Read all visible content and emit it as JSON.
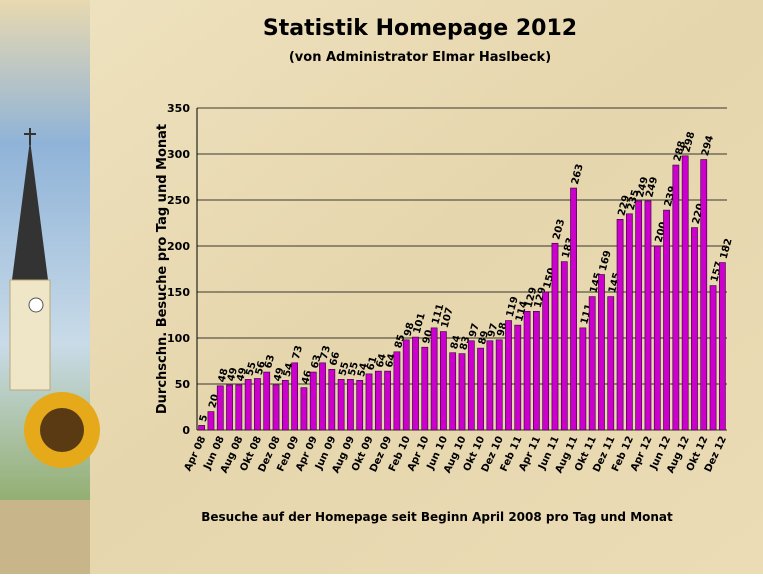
{
  "chart_data": {
    "type": "bar",
    "title": "Statistik Homepage 2012",
    "subtitle": "(von Administrator Elmar Haslbeck)",
    "y_label": "Durchschn. Besuche pro Tag und Monat",
    "x_label": "Besuche auf der Homepage seit Beginn April 2008 pro Tag und Monat",
    "categories": [
      "Apr 08",
      null,
      "Jun 08",
      null,
      "Aug 08",
      null,
      "Okt 08",
      null,
      "Dez 08",
      null,
      "Feb 09",
      null,
      "Apr 09",
      null,
      "Jun 09",
      null,
      "Aug 09",
      null,
      "Okt 09",
      null,
      "Dez 09",
      null,
      "Feb 10",
      null,
      "Apr 10",
      null,
      "Jun 10",
      null,
      "Aug 10",
      null,
      "Okt 10",
      null,
      "Dez 10",
      null,
      "Feb 11",
      null,
      "Apr 11",
      null,
      "Jun 11",
      null,
      "Aug 11",
      null,
      "Okt 11",
      null,
      "Dez 11",
      null,
      "Feb 12",
      null,
      "Apr 12",
      null,
      "Jun 12",
      null,
      "Aug 12",
      null,
      "Okt 12",
      null,
      "Dez 12"
    ],
    "values": [
      5,
      20,
      48,
      49,
      49,
      55,
      56,
      63,
      49,
      54,
      73,
      46,
      63,
      73,
      66,
      55,
      55,
      54,
      61,
      64,
      64,
      85,
      98,
      101,
      90,
      111,
      107,
      84,
      83,
      97,
      89,
      97,
      98,
      119,
      114,
      129,
      129,
      150,
      203,
      183,
      263,
      111,
      145,
      169,
      145,
      229,
      235,
      249,
      249,
      200,
      239,
      288,
      298,
      220,
      294,
      157,
      182
    ],
    "color": "#cc00cc",
    "ylim": [
      0,
      350
    ],
    "yticks": [
      0,
      50,
      100,
      150,
      200,
      250,
      300,
      350
    ],
    "grid": true
  }
}
